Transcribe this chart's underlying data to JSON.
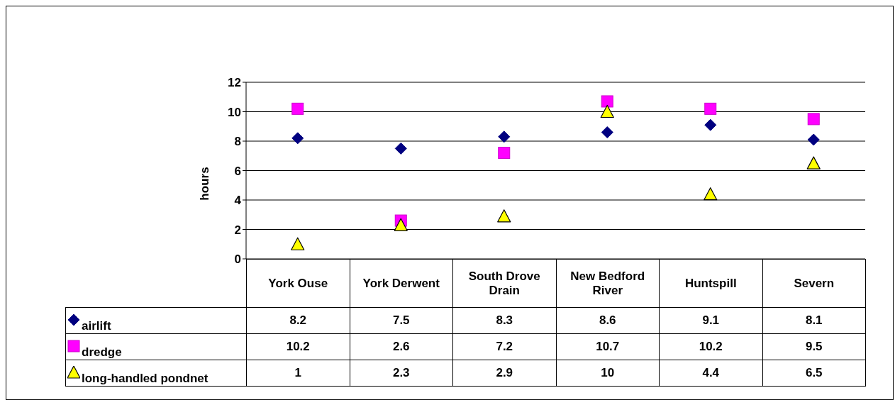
{
  "chart_data": {
    "type": "scatter",
    "ylabel": "hours",
    "categories": [
      "York Ouse",
      "York Derwent",
      "South Drove Drain",
      "New Bedford River",
      "Huntspill",
      "Severn"
    ],
    "series": [
      {
        "name": "airlift",
        "color": "#000080",
        "marker": "diamond",
        "values": [
          8.2,
          7.5,
          8.3,
          8.6,
          9.1,
          8.1
        ]
      },
      {
        "name": "dredge",
        "color": "#ff00ff",
        "marker": "square",
        "values": [
          10.2,
          2.6,
          7.2,
          10.7,
          10.2,
          9.5
        ]
      },
      {
        "name": "long-handled pondnet",
        "color": "#ffff00",
        "marker": "triangle",
        "values": [
          1,
          2.3,
          2.9,
          10,
          4.4,
          6.5
        ]
      }
    ],
    "ylim": [
      0,
      12
    ],
    "yticks": [
      0,
      2,
      4,
      6,
      8,
      10,
      12
    ],
    "grid": "y",
    "legend": "bottom",
    "data_labels": true
  }
}
